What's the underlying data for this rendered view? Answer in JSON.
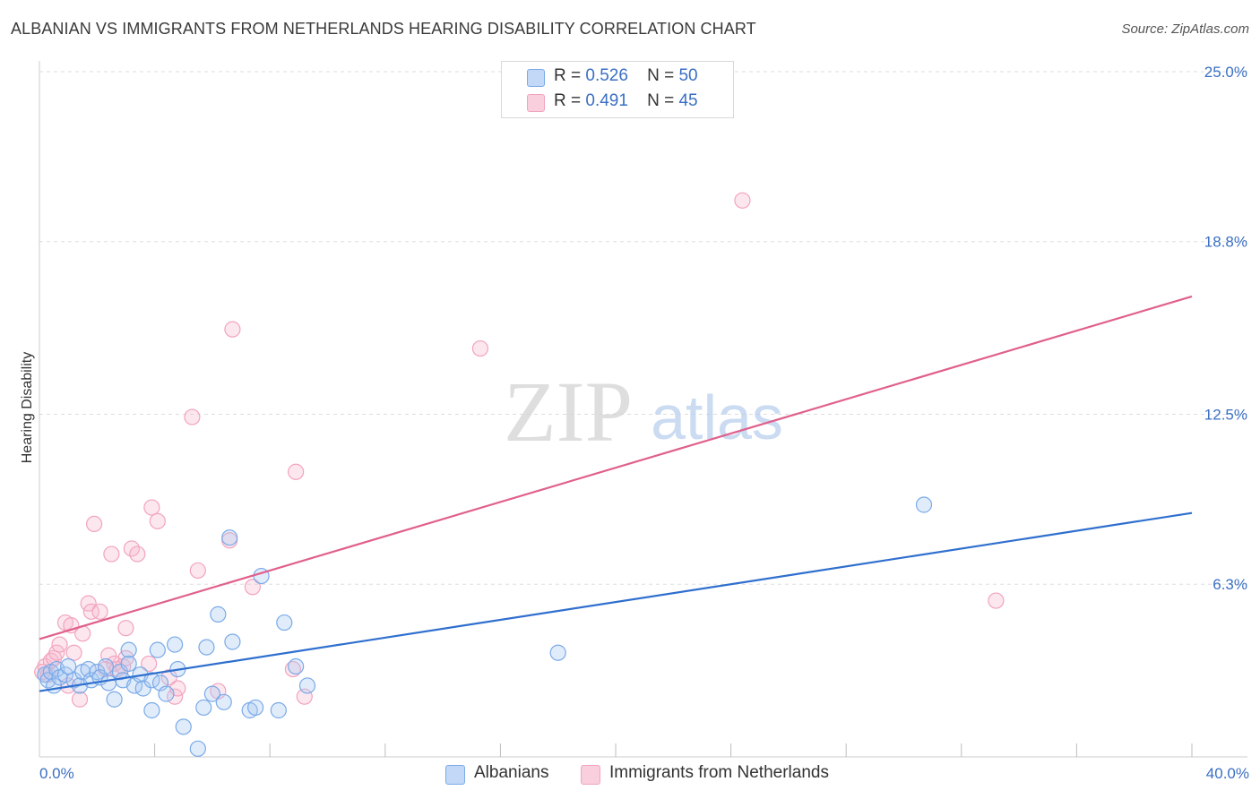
{
  "title": "ALBANIAN VS IMMIGRANTS FROM NETHERLANDS HEARING DISABILITY CORRELATION CHART",
  "source": "Source: ZipAtlas.com",
  "watermark": {
    "zip": "ZIP",
    "atlas": "atlas"
  },
  "legend": {
    "r_label": "R =",
    "n_label": "N =",
    "albanians": {
      "r": "0.526",
      "n": "50"
    },
    "netherlands": {
      "r": "0.491",
      "n": "45"
    }
  },
  "bottom_legend": {
    "albanians": "Albanians",
    "netherlands": "Immigrants from Netherlands"
  },
  "chart_data": {
    "type": "scatter",
    "title": "ALBANIAN VS IMMIGRANTS FROM NETHERLANDS HEARING DISABILITY CORRELATION CHART",
    "xlabel": "",
    "ylabel": "Hearing Disability",
    "xlim": [
      0,
      40
    ],
    "ylim": [
      0,
      25
    ],
    "x_tick_labels": [
      "0.0%",
      "40.0%"
    ],
    "y_ticks": [
      6.3,
      12.5,
      18.8,
      25.0
    ],
    "y_tick_labels": [
      "6.3%",
      "12.5%",
      "18.8%",
      "25.0%"
    ],
    "grid": true,
    "legend_position": "top-center",
    "colors": {
      "albanians": "#7aaae8",
      "albanians_line": "#2f6fce",
      "netherlands": "#f2a3bf",
      "netherlands_line": "#e0608c"
    },
    "series": [
      {
        "name": "Albanians",
        "trend": [
          [
            0,
            2.4
          ],
          [
            40,
            8.9
          ]
        ],
        "points": [
          [
            0.2,
            3.0
          ],
          [
            0.3,
            2.8
          ],
          [
            0.4,
            3.1
          ],
          [
            0.5,
            2.6
          ],
          [
            0.6,
            3.2
          ],
          [
            0.7,
            2.9
          ],
          [
            0.9,
            3.0
          ],
          [
            1.0,
            3.3
          ],
          [
            1.2,
            2.8
          ],
          [
            1.4,
            2.6
          ],
          [
            1.5,
            3.1
          ],
          [
            1.7,
            3.2
          ],
          [
            1.8,
            2.8
          ],
          [
            2.0,
            3.1
          ],
          [
            2.1,
            2.9
          ],
          [
            2.3,
            3.3
          ],
          [
            2.4,
            2.7
          ],
          [
            2.6,
            2.1
          ],
          [
            2.8,
            3.1
          ],
          [
            2.9,
            2.8
          ],
          [
            3.1,
            3.9
          ],
          [
            3.1,
            3.4
          ],
          [
            3.3,
            2.6
          ],
          [
            3.5,
            3.0
          ],
          [
            3.6,
            2.5
          ],
          [
            3.9,
            2.8
          ],
          [
            3.9,
            1.7
          ],
          [
            4.1,
            3.9
          ],
          [
            4.2,
            2.7
          ],
          [
            4.4,
            2.3
          ],
          [
            4.7,
            4.1
          ],
          [
            4.8,
            3.2
          ],
          [
            5.0,
            1.1
          ],
          [
            5.5,
            0.3
          ],
          [
            5.7,
            1.8
          ],
          [
            5.8,
            4.0
          ],
          [
            6.0,
            2.3
          ],
          [
            6.2,
            5.2
          ],
          [
            6.4,
            2.0
          ],
          [
            6.6,
            8.0
          ],
          [
            6.7,
            4.2
          ],
          [
            7.3,
            1.7
          ],
          [
            7.5,
            1.8
          ],
          [
            7.7,
            6.6
          ],
          [
            8.3,
            1.7
          ],
          [
            8.5,
            4.9
          ],
          [
            8.9,
            3.3
          ],
          [
            9.3,
            2.6
          ],
          [
            18.0,
            3.8
          ],
          [
            30.7,
            9.2
          ]
        ]
      },
      {
        "name": "Immigrants from Netherlands",
        "trend": [
          [
            0,
            4.3
          ],
          [
            40,
            16.8
          ]
        ],
        "points": [
          [
            0.2,
            3.3
          ],
          [
            0.3,
            3.0
          ],
          [
            0.4,
            3.5
          ],
          [
            0.5,
            3.6
          ],
          [
            0.6,
            3.8
          ],
          [
            0.7,
            4.1
          ],
          [
            0.9,
            4.9
          ],
          [
            1.0,
            2.6
          ],
          [
            1.1,
            4.8
          ],
          [
            1.2,
            3.8
          ],
          [
            1.4,
            2.1
          ],
          [
            1.5,
            4.5
          ],
          [
            1.7,
            5.6
          ],
          [
            1.8,
            5.3
          ],
          [
            1.9,
            8.5
          ],
          [
            2.1,
            5.3
          ],
          [
            2.3,
            3.2
          ],
          [
            2.4,
            3.7
          ],
          [
            2.5,
            7.4
          ],
          [
            2.6,
            3.4
          ],
          [
            2.7,
            3.2
          ],
          [
            2.9,
            3.3
          ],
          [
            3.0,
            3.6
          ],
          [
            3.0,
            4.7
          ],
          [
            3.2,
            7.6
          ],
          [
            3.4,
            7.4
          ],
          [
            3.8,
            3.4
          ],
          [
            3.9,
            9.1
          ],
          [
            4.1,
            8.6
          ],
          [
            4.5,
            2.9
          ],
          [
            4.7,
            2.2
          ],
          [
            4.8,
            2.5
          ],
          [
            5.3,
            12.4
          ],
          [
            5.5,
            6.8
          ],
          [
            6.2,
            2.4
          ],
          [
            6.6,
            7.9
          ],
          [
            6.7,
            15.6
          ],
          [
            7.4,
            6.2
          ],
          [
            8.8,
            3.2
          ],
          [
            8.9,
            10.4
          ],
          [
            9.2,
            2.2
          ],
          [
            15.3,
            14.9
          ],
          [
            24.4,
            20.3
          ],
          [
            33.2,
            5.7
          ],
          [
            0.1,
            3.1
          ]
        ]
      }
    ]
  }
}
